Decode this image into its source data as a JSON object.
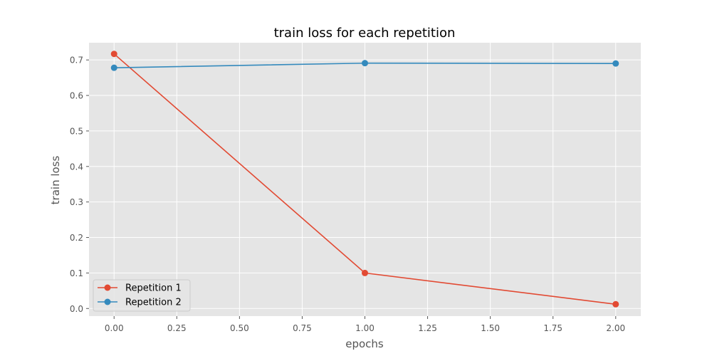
{
  "chart_data": {
    "type": "line",
    "title": "train loss for each repetition",
    "xlabel": "epochs",
    "ylabel": "train loss",
    "xlim": [
      -0.1,
      2.1
    ],
    "ylim": [
      -0.0215,
      0.7485
    ],
    "xticks": [
      0.0,
      0.25,
      0.5,
      0.75,
      1.0,
      1.25,
      1.5,
      1.75,
      2.0
    ],
    "xtick_labels": [
      "0.00",
      "0.25",
      "0.50",
      "0.75",
      "1.00",
      "1.25",
      "1.50",
      "1.75",
      "2.00"
    ],
    "yticks": [
      0.0,
      0.1,
      0.2,
      0.3,
      0.4,
      0.5,
      0.6,
      0.7
    ],
    "ytick_labels": [
      "0.0",
      "0.1",
      "0.2",
      "0.3",
      "0.4",
      "0.5",
      "0.6",
      "0.7"
    ],
    "grid": true,
    "legend_position": "lower-left",
    "series": [
      {
        "name": "Repetition 1",
        "color": "#E24A33",
        "x": [
          0,
          1,
          2
        ],
        "y": [
          0.717,
          0.1,
          0.012
        ]
      },
      {
        "name": "Repetition 2",
        "color": "#348ABD",
        "x": [
          0,
          1,
          2
        ],
        "y": [
          0.678,
          0.691,
          0.69
        ]
      }
    ]
  }
}
